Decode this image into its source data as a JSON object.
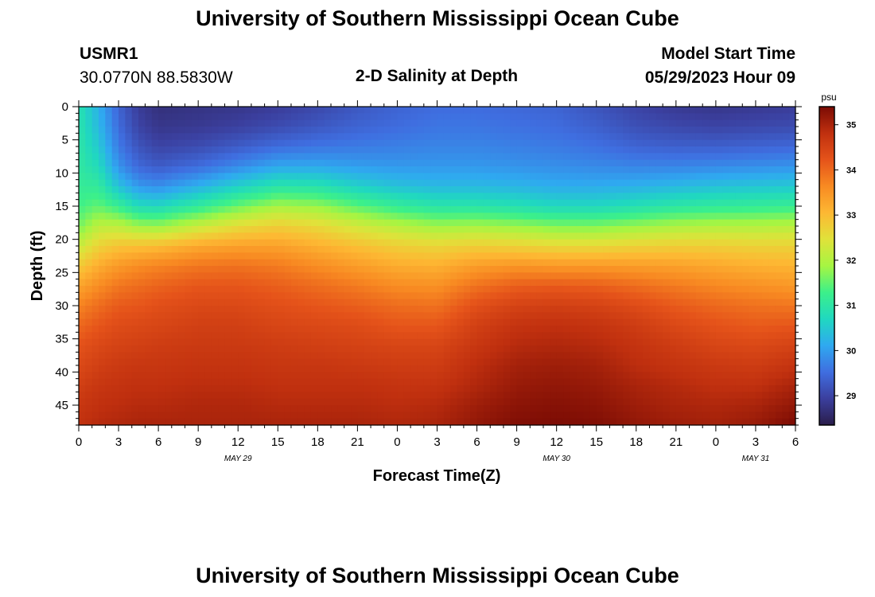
{
  "header": {
    "title": "University of Southern Mississippi Ocean Cube",
    "station_id": "USMR1",
    "coordinates": "30.0770N  88.5830W",
    "chart_title": "2-D Salinity at Depth",
    "start_label": "Model Start Time",
    "start_value": "05/29/2023 Hour 09"
  },
  "footer": {
    "title": "University of Southern Mississippi Ocean Cube"
  },
  "chart_data": {
    "type": "heatmap",
    "title": "2-D Salinity at Depth",
    "xlabel": "Forecast Time(Z)",
    "ylabel": "Depth (ft)",
    "x_ticks": [
      "0",
      "3",
      "6",
      "9",
      "12",
      "15",
      "18",
      "21",
      "0",
      "3",
      "6",
      "9",
      "12",
      "15",
      "18",
      "21",
      "0",
      "3",
      "6"
    ],
    "date_labels": [
      {
        "label": "MAY 29",
        "tick_index": 4
      },
      {
        "label": "MAY 30",
        "tick_index": 12
      },
      {
        "label": "MAY 31",
        "tick_index": 17
      }
    ],
    "x_range_hours": [
      0,
      54
    ],
    "y_ticks": [
      0,
      5,
      10,
      15,
      20,
      25,
      30,
      35,
      40,
      45
    ],
    "ylim": [
      0,
      48
    ],
    "y_inverted": true,
    "colorbar": {
      "unit": "psu",
      "ticks": [
        29,
        30,
        31,
        32,
        33,
        34,
        35
      ],
      "range": [
        28.35,
        35.4
      ],
      "colors": [
        "#2a1d4a",
        "#3b3f9e",
        "#3f6ee0",
        "#2fa9f0",
        "#20d8c0",
        "#3cf08a",
        "#a6f542",
        "#e0e23a",
        "#fdb833",
        "#f88a22",
        "#e5531a",
        "#c0300f",
        "#7a0b04"
      ]
    },
    "profiles": {
      "hours": [
        0,
        1.5,
        3,
        4.5,
        6,
        9,
        12,
        15,
        18,
        21,
        24,
        27,
        30,
        33,
        36,
        39,
        42,
        45,
        48,
        51,
        54
      ],
      "depths": [
        0,
        3,
        6,
        9,
        12,
        15,
        18,
        21,
        24,
        27,
        30,
        33,
        36,
        39,
        42,
        45,
        48
      ],
      "salinity": [
        [
          30.9,
          30.95,
          31.0,
          31.05,
          31.15,
          31.3,
          31.6,
          32.2,
          32.8,
          33.3,
          33.7,
          34.0,
          34.25,
          34.4,
          34.55,
          34.7,
          34.8
        ],
        [
          30.2,
          30.3,
          30.5,
          30.75,
          31.1,
          31.5,
          32.1,
          32.7,
          33.2,
          33.6,
          33.95,
          34.2,
          34.4,
          34.55,
          34.7,
          34.8,
          34.9
        ],
        [
          29.4,
          29.5,
          29.65,
          29.9,
          30.4,
          31.2,
          32.1,
          32.9,
          33.45,
          33.85,
          34.15,
          34.35,
          34.5,
          34.65,
          34.75,
          34.85,
          34.95
        ],
        [
          28.9,
          29.0,
          29.2,
          29.45,
          29.95,
          30.75,
          31.85,
          32.95,
          33.6,
          33.95,
          34.2,
          34.4,
          34.55,
          34.7,
          34.8,
          34.9,
          35.0
        ],
        [
          28.7,
          28.8,
          29.0,
          29.3,
          29.85,
          30.7,
          31.8,
          33.0,
          33.7,
          34.05,
          34.3,
          34.45,
          34.6,
          34.7,
          34.8,
          34.9,
          35.0
        ],
        [
          28.75,
          28.85,
          29.1,
          29.5,
          30.2,
          31.1,
          32.2,
          33.25,
          33.85,
          34.2,
          34.4,
          34.55,
          34.65,
          34.75,
          34.85,
          34.95,
          35.0
        ],
        [
          28.8,
          28.95,
          29.3,
          29.8,
          30.6,
          31.55,
          32.55,
          33.35,
          33.9,
          34.2,
          34.4,
          34.55,
          34.65,
          34.75,
          34.85,
          34.95,
          35.0
        ],
        [
          28.9,
          29.1,
          29.5,
          30.1,
          30.95,
          31.9,
          32.75,
          33.35,
          33.8,
          34.1,
          34.3,
          34.45,
          34.6,
          34.7,
          34.8,
          34.9,
          35.0
        ],
        [
          29.05,
          29.25,
          29.6,
          30.1,
          30.9,
          31.8,
          32.6,
          33.15,
          33.6,
          33.95,
          34.2,
          34.4,
          34.55,
          34.7,
          34.8,
          34.9,
          35.0
        ],
        [
          29.25,
          29.4,
          29.65,
          30.0,
          30.6,
          31.45,
          32.3,
          32.95,
          33.4,
          33.8,
          34.1,
          34.35,
          34.5,
          34.65,
          34.8,
          34.9,
          35.0
        ],
        [
          29.4,
          29.5,
          29.7,
          29.95,
          30.4,
          31.15,
          32.05,
          32.75,
          33.2,
          33.6,
          33.95,
          34.2,
          34.45,
          34.6,
          34.75,
          34.85,
          34.95
        ],
        [
          29.5,
          29.6,
          29.75,
          29.95,
          30.3,
          30.95,
          31.85,
          32.65,
          33.15,
          33.55,
          33.9,
          34.2,
          34.45,
          34.6,
          34.75,
          34.9,
          35.0
        ],
        [
          29.5,
          29.6,
          29.75,
          29.95,
          30.3,
          30.95,
          31.9,
          32.75,
          33.4,
          33.9,
          34.3,
          34.55,
          34.7,
          34.85,
          34.95,
          35.1,
          35.2
        ],
        [
          29.45,
          29.55,
          29.7,
          29.9,
          30.25,
          30.85,
          31.8,
          32.7,
          33.5,
          34.1,
          34.5,
          34.75,
          34.9,
          35.05,
          35.15,
          35.25,
          35.35
        ],
        [
          29.4,
          29.5,
          29.65,
          29.85,
          30.15,
          30.7,
          31.65,
          32.6,
          33.45,
          34.15,
          34.55,
          34.8,
          34.95,
          35.1,
          35.2,
          35.3,
          35.38
        ],
        [
          29.2,
          29.35,
          29.55,
          29.8,
          30.15,
          30.7,
          31.65,
          32.6,
          33.45,
          34.1,
          34.5,
          34.75,
          34.9,
          35.05,
          35.15,
          35.25,
          35.35
        ],
        [
          29.0,
          29.15,
          29.4,
          29.75,
          30.2,
          30.85,
          31.8,
          32.7,
          33.4,
          33.95,
          34.35,
          34.6,
          34.75,
          34.85,
          35.0,
          35.1,
          35.2
        ],
        [
          28.85,
          29.05,
          29.35,
          29.75,
          30.3,
          31.0,
          31.95,
          32.75,
          33.35,
          33.8,
          34.15,
          34.4,
          34.6,
          34.75,
          34.9,
          35.0,
          35.1
        ],
        [
          28.8,
          29.0,
          29.35,
          29.8,
          30.4,
          31.1,
          32.0,
          32.75,
          33.25,
          33.65,
          34.0,
          34.25,
          34.45,
          34.65,
          34.8,
          34.95,
          35.05
        ],
        [
          28.85,
          29.05,
          29.4,
          29.85,
          30.45,
          31.15,
          32.0,
          32.7,
          33.15,
          33.55,
          33.9,
          34.15,
          34.4,
          34.6,
          34.8,
          35.0,
          35.15
        ],
        [
          28.9,
          29.1,
          29.45,
          29.9,
          30.5,
          31.2,
          32.05,
          32.7,
          33.1,
          33.45,
          33.85,
          34.2,
          34.5,
          34.75,
          35.0,
          35.2,
          35.4
        ]
      ]
    }
  }
}
